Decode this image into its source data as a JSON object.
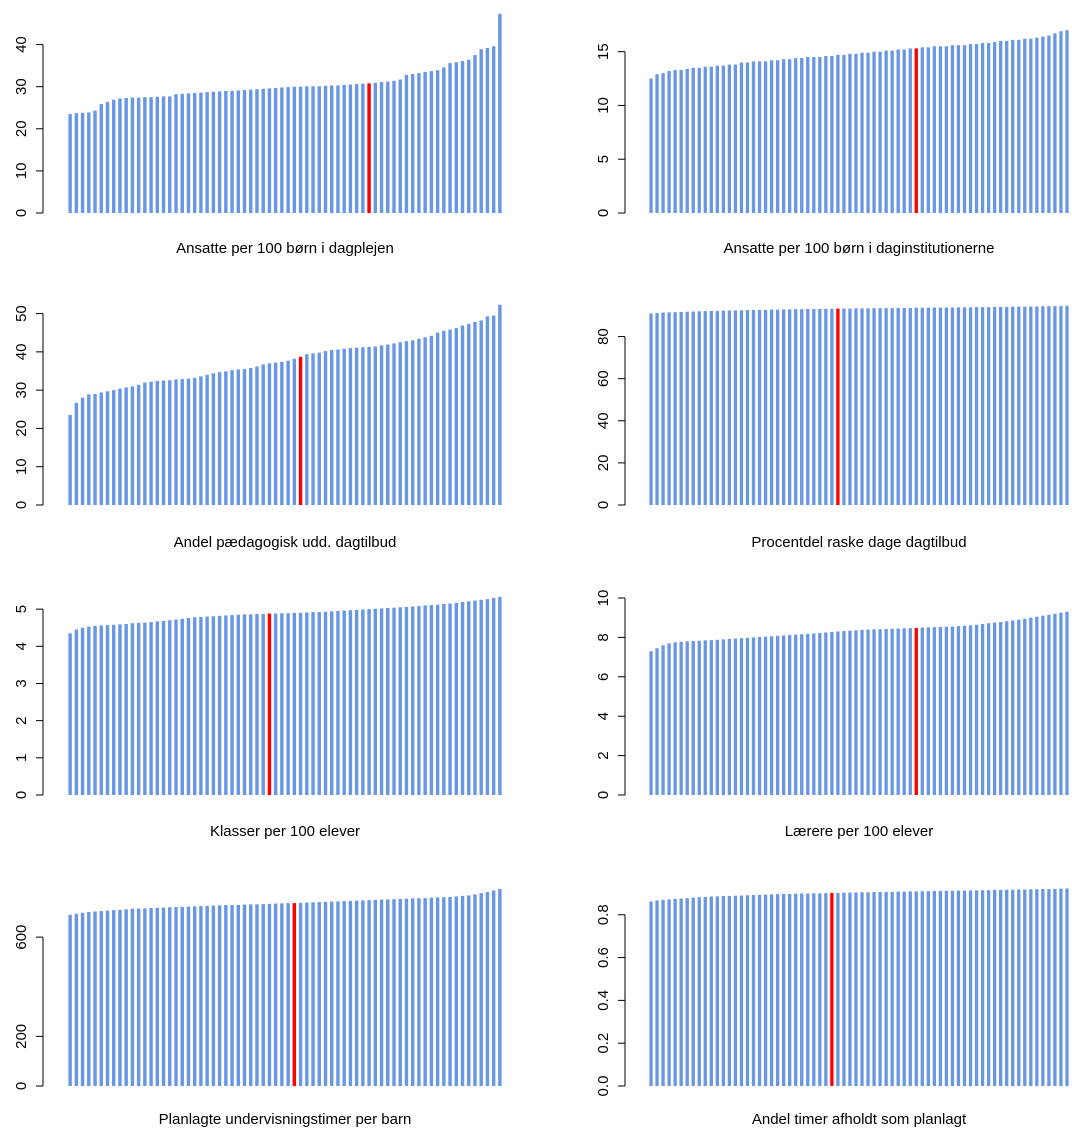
{
  "style": {
    "bar_color": "#6a97e3",
    "highlight_color": "#ff0000"
  },
  "chart_data": [
    {
      "type": "bar",
      "title": "",
      "xlabel": "Ansatte per 100 børn i dagplejen",
      "ylabel": "",
      "ylim": [
        0,
        47.5
      ],
      "yticks": [
        0,
        10,
        20,
        30,
        40
      ],
      "ytick_labels": [
        "0",
        "10",
        "20",
        "30",
        "40"
      ],
      "highlight_index": 48,
      "values": [
        23.5,
        23.7,
        23.8,
        23.9,
        24.3,
        25.9,
        26.4,
        26.9,
        27.2,
        27.3,
        27.4,
        27.4,
        27.5,
        27.5,
        27.6,
        27.7,
        27.7,
        28.2,
        28.3,
        28.4,
        28.5,
        28.6,
        28.7,
        28.8,
        28.9,
        29.0,
        29.0,
        29.1,
        29.2,
        29.3,
        29.4,
        29.5,
        29.6,
        29.7,
        29.8,
        29.9,
        30.0,
        30.0,
        30.1,
        30.1,
        30.1,
        30.2,
        30.3,
        30.3,
        30.4,
        30.5,
        30.6,
        30.7,
        30.8,
        30.9,
        31.1,
        31.2,
        31.4,
        31.7,
        32.8,
        33.0,
        33.2,
        33.5,
        33.7,
        33.9,
        34.6,
        35.6,
        35.8,
        36.1,
        36.4,
        37.5,
        38.9,
        39.2,
        39.6,
        47.3
      ]
    },
    {
      "type": "bar",
      "title": "",
      "xlabel": "Ansatte per 100 børn i daginstitutionerne",
      "ylabel": "",
      "ylim": [
        0,
        17.2
      ],
      "yticks": [
        0,
        5,
        10,
        15
      ],
      "ytick_labels": [
        "0",
        "5",
        "10",
        "15"
      ],
      "highlight_index": 44,
      "values": [
        12.5,
        12.9,
        13.0,
        13.2,
        13.3,
        13.3,
        13.4,
        13.5,
        13.5,
        13.6,
        13.6,
        13.7,
        13.7,
        13.8,
        13.8,
        14.0,
        14.0,
        14.1,
        14.1,
        14.1,
        14.2,
        14.2,
        14.3,
        14.3,
        14.4,
        14.4,
        14.5,
        14.5,
        14.5,
        14.6,
        14.6,
        14.7,
        14.7,
        14.8,
        14.8,
        14.9,
        14.9,
        15.0,
        15.0,
        15.1,
        15.1,
        15.2,
        15.2,
        15.3,
        15.3,
        15.4,
        15.4,
        15.5,
        15.5,
        15.5,
        15.6,
        15.6,
        15.6,
        15.7,
        15.7,
        15.8,
        15.8,
        15.9,
        16.0,
        16.0,
        16.1,
        16.1,
        16.2,
        16.2,
        16.3,
        16.4,
        16.5,
        16.7,
        16.9,
        17.0
      ]
    },
    {
      "type": "bar",
      "title": "",
      "xlabel": "Andel pædagogisk udd. dagtilbud",
      "ylabel": "",
      "ylim": [
        0,
        52.5
      ],
      "yticks": [
        0,
        10,
        20,
        30,
        40,
        50
      ],
      "ytick_labels": [
        "0",
        "10",
        "20",
        "30",
        "40",
        "50"
      ],
      "highlight_index": 37,
      "values": [
        23.5,
        26.7,
        28.0,
        28.9,
        29.0,
        29.4,
        29.7,
        30.0,
        30.4,
        30.7,
        31.0,
        31.4,
        32.0,
        32.2,
        32.4,
        32.5,
        32.6,
        32.8,
        32.9,
        33.0,
        33.2,
        33.6,
        34.0,
        34.4,
        34.7,
        34.9,
        35.2,
        35.4,
        35.5,
        35.8,
        36.2,
        36.7,
        37.0,
        37.2,
        37.4,
        37.7,
        38.2,
        38.7,
        39.4,
        39.6,
        39.8,
        40.2,
        40.5,
        40.6,
        40.8,
        41.0,
        41.1,
        41.2,
        41.3,
        41.4,
        41.7,
        41.9,
        42.2,
        42.5,
        42.8,
        43.0,
        43.4,
        43.8,
        44.2,
        45.0,
        45.5,
        45.8,
        46.2,
        46.9,
        47.3,
        47.8,
        48.2,
        49.3,
        49.5,
        52.3
      ]
    },
    {
      "type": "bar",
      "title": "",
      "xlabel": "Procentdel raske dage dagtilbud",
      "ylabel": "",
      "ylim": [
        0,
        95
      ],
      "yticks": [
        0,
        20,
        40,
        60,
        80
      ],
      "ytick_labels": [
        "0",
        "20",
        "40",
        "60",
        "80"
      ],
      "highlight_index": 31,
      "values": [
        91.0,
        91.2,
        91.4,
        91.5,
        91.6,
        91.7,
        91.8,
        91.9,
        92.0,
        92.1,
        92.2,
        92.2,
        92.3,
        92.4,
        92.4,
        92.5,
        92.6,
        92.6,
        92.7,
        92.7,
        92.8,
        92.8,
        92.9,
        92.9,
        93.0,
        93.0,
        93.1,
        93.1,
        93.1,
        93.2,
        93.2,
        93.3,
        93.3,
        93.3,
        93.4,
        93.4,
        93.4,
        93.5,
        93.5,
        93.5,
        93.5,
        93.6,
        93.6,
        93.6,
        93.7,
        93.7,
        93.7,
        93.8,
        93.8,
        93.8,
        93.8,
        93.9,
        93.9,
        93.9,
        94.0,
        94.0,
        94.0,
        94.1,
        94.1,
        94.1,
        94.2,
        94.2,
        94.2,
        94.3,
        94.3,
        94.4,
        94.4,
        94.5,
        94.5,
        94.6
      ]
    },
    {
      "type": "bar",
      "title": "",
      "xlabel": "Klasser per 100 elever",
      "ylabel": "",
      "ylim": [
        0,
        5.38
      ],
      "yticks": [
        0,
        1,
        2,
        3,
        4,
        5
      ],
      "ytick_labels": [
        "0",
        "1",
        "2",
        "3",
        "4",
        "5"
      ],
      "highlight_index": 32,
      "values": [
        4.35,
        4.45,
        4.5,
        4.53,
        4.55,
        4.56,
        4.57,
        4.58,
        4.59,
        4.6,
        4.62,
        4.63,
        4.64,
        4.65,
        4.67,
        4.68,
        4.7,
        4.72,
        4.74,
        4.76,
        4.78,
        4.79,
        4.8,
        4.81,
        4.82,
        4.83,
        4.84,
        4.85,
        4.86,
        4.86,
        4.87,
        4.87,
        4.88,
        4.88,
        4.89,
        4.89,
        4.9,
        4.9,
        4.91,
        4.92,
        4.92,
        4.93,
        4.94,
        4.95,
        4.96,
        4.97,
        4.98,
        4.99,
        5.0,
        5.01,
        5.02,
        5.03,
        5.04,
        5.05,
        5.06,
        5.07,
        5.08,
        5.1,
        5.11,
        5.12,
        5.14,
        5.15,
        5.17,
        5.19,
        5.21,
        5.23,
        5.25,
        5.27,
        5.3,
        5.33
      ]
    },
    {
      "type": "bar",
      "title": "",
      "xlabel": "Lærere per 100 elever",
      "ylabel": "",
      "ylim": [
        0,
        10
      ],
      "yticks": [
        0,
        2,
        4,
        6,
        8,
        10
      ],
      "ytick_labels": [
        "0",
        "2",
        "4",
        "6",
        "8",
        "10"
      ],
      "highlight_index": 44,
      "values": [
        7.3,
        7.45,
        7.6,
        7.7,
        7.75,
        7.78,
        7.8,
        7.82,
        7.83,
        7.85,
        7.86,
        7.88,
        7.9,
        7.92,
        7.94,
        7.96,
        7.98,
        8.0,
        8.02,
        8.04,
        8.06,
        8.08,
        8.1,
        8.12,
        8.14,
        8.16,
        8.18,
        8.2,
        8.22,
        8.25,
        8.28,
        8.3,
        8.32,
        8.34,
        8.36,
        8.38,
        8.4,
        8.41,
        8.42,
        8.43,
        8.44,
        8.45,
        8.46,
        8.47,
        8.48,
        8.5,
        8.51,
        8.52,
        8.53,
        8.54,
        8.55,
        8.57,
        8.59,
        8.61,
        8.64,
        8.68,
        8.72,
        8.75,
        8.78,
        8.82,
        8.86,
        8.9,
        8.95,
        9.0,
        9.05,
        9.1,
        9.15,
        9.2,
        9.25,
        9.3
      ]
    },
    {
      "type": "bar",
      "title": "",
      "xlabel": "Planlagte undervisningstimer per barn",
      "ylabel": "",
      "ylim": [
        0,
        810
      ],
      "yticks": [
        0,
        200,
        600
      ],
      "ytick_labels": [
        "0",
        "200",
        "600"
      ],
      "highlight_index": 36,
      "values": [
        690,
        694,
        698,
        701,
        703,
        705,
        707,
        709,
        710,
        712,
        714,
        715,
        716,
        717,
        718,
        719,
        720,
        721,
        722,
        723,
        724,
        725,
        726,
        727,
        728,
        729,
        729,
        730,
        731,
        732,
        732,
        733,
        734,
        735,
        736,
        737,
        737,
        738,
        739,
        740,
        741,
        742,
        743,
        744,
        745,
        746,
        747,
        748,
        749,
        750,
        751,
        752,
        753,
        754,
        755,
        756,
        757,
        758,
        759,
        760,
        761,
        762,
        764,
        766,
        768,
        772,
        777,
        782,
        788,
        794
      ]
    },
    {
      "type": "bar",
      "title": "",
      "xlabel": "Andel timer afholdt som planlagt",
      "ylabel": "",
      "ylim": [
        0,
        0.925
      ],
      "yticks": [
        0,
        0.2,
        0.4,
        0.6,
        0.8
      ],
      "ytick_labels": [
        "0.0",
        "0.2",
        "0.4",
        "0.6",
        "0.8"
      ],
      "highlight_index": 30,
      "values": [
        0.862,
        0.867,
        0.87,
        0.872,
        0.874,
        0.876,
        0.878,
        0.88,
        0.882,
        0.883,
        0.885,
        0.886,
        0.887,
        0.888,
        0.889,
        0.89,
        0.891,
        0.892,
        0.893,
        0.894,
        0.895,
        0.896,
        0.897,
        0.897,
        0.898,
        0.899,
        0.899,
        0.9,
        0.9,
        0.901,
        0.902,
        0.902,
        0.903,
        0.904,
        0.904,
        0.905,
        0.905,
        0.906,
        0.906,
        0.907,
        0.907,
        0.908,
        0.908,
        0.909,
        0.909,
        0.91,
        0.91,
        0.911,
        0.911,
        0.912,
        0.912,
        0.913,
        0.913,
        0.914,
        0.914,
        0.915,
        0.915,
        0.916,
        0.916,
        0.917,
        0.917,
        0.918,
        0.918,
        0.919,
        0.919,
        0.92,
        0.92,
        0.921,
        0.922,
        0.923
      ]
    }
  ]
}
